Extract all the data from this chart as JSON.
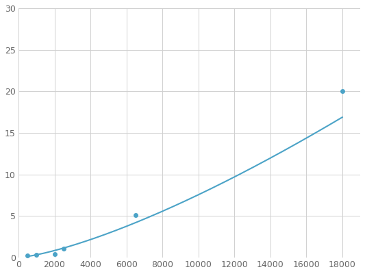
{
  "x": [
    500,
    1000,
    2000,
    2500,
    6500,
    18000
  ],
  "y": [
    0.2,
    0.3,
    0.4,
    1.1,
    5.1,
    20.0
  ],
  "line_color": "#4ba3c7",
  "marker_color": "#4ba3c7",
  "marker_style": "o",
  "marker_size": 4,
  "line_width": 1.5,
  "xlim": [
    0,
    19000
  ],
  "ylim": [
    0,
    30
  ],
  "xticks": [
    0,
    2000,
    4000,
    6000,
    8000,
    10000,
    12000,
    14000,
    16000,
    18000
  ],
  "yticks": [
    0,
    5,
    10,
    15,
    20,
    25,
    30
  ],
  "grid_color": "#d0d0d0",
  "grid_linestyle": "-",
  "grid_linewidth": 0.7,
  "background_color": "#ffffff",
  "tick_fontsize": 9,
  "tick_color": "#666666"
}
